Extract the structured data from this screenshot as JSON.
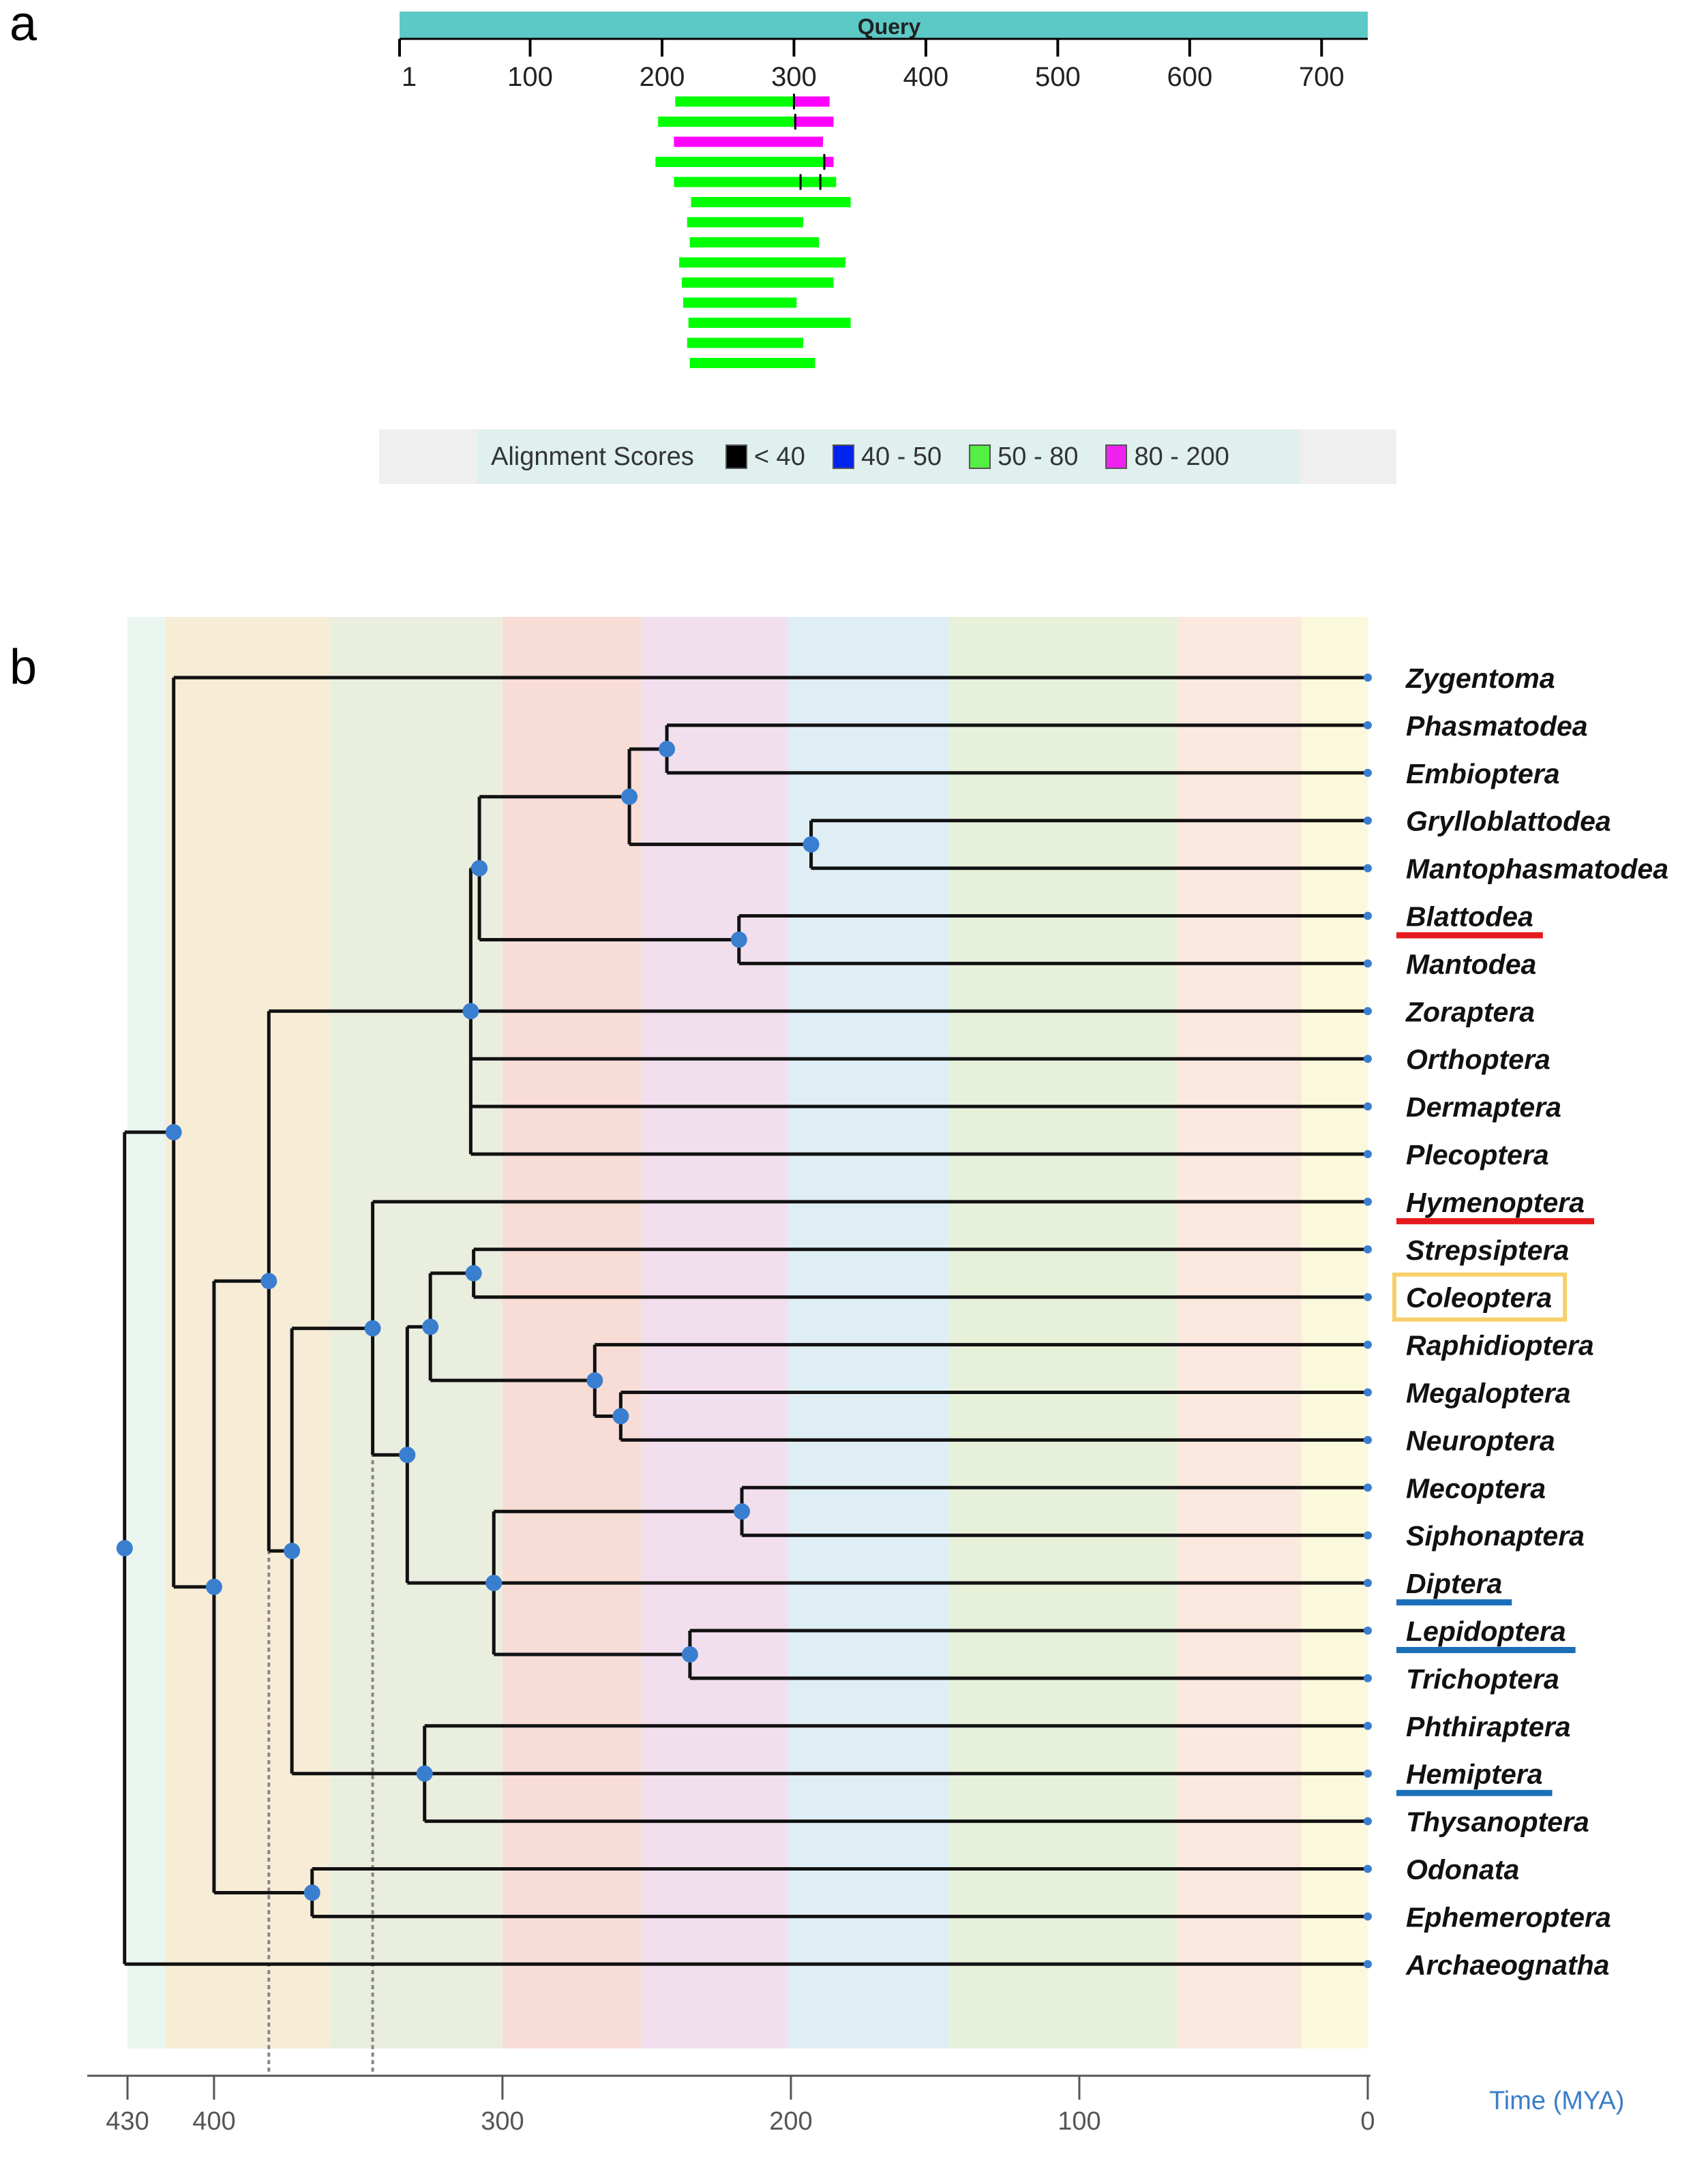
{
  "panel_a": {
    "letter": "a",
    "query_label": "Query",
    "query_length": 735,
    "query_color": "#5bc9c6",
    "axis_ticks": [
      "1",
      "100",
      "200",
      "300",
      "400",
      "500",
      "600",
      "700"
    ],
    "hits": [
      {
        "start": 210,
        "end": 327,
        "segments": [
          {
            "from": 210,
            "to": 300,
            "color": "#00ff00"
          },
          {
            "from": 300,
            "to": 327,
            "color": "#ff00ff"
          }
        ],
        "marks": [
          300
        ]
      },
      {
        "start": 197,
        "end": 330,
        "segments": [
          {
            "from": 197,
            "to": 300,
            "color": "#00ff00"
          },
          {
            "from": 300,
            "to": 330,
            "color": "#ff00ff"
          }
        ],
        "marks": [
          301
        ]
      },
      {
        "start": 209,
        "end": 322,
        "segments": [
          {
            "from": 209,
            "to": 322,
            "color": "#ff00ff"
          }
        ],
        "marks": []
      },
      {
        "start": 195,
        "end": 330,
        "segments": [
          {
            "from": 195,
            "to": 323,
            "color": "#00ff00"
          },
          {
            "from": 323,
            "to": 330,
            "color": "#ff00ff"
          }
        ],
        "marks": [
          323
        ]
      },
      {
        "start": 209,
        "end": 332,
        "segments": [
          {
            "from": 209,
            "to": 332,
            "color": "#00ff00"
          }
        ],
        "marks": [
          305,
          320
        ]
      },
      {
        "start": 222,
        "end": 343,
        "segments": [
          {
            "from": 222,
            "to": 343,
            "color": "#00ff00"
          }
        ],
        "marks": []
      },
      {
        "start": 219,
        "end": 307,
        "segments": [
          {
            "from": 219,
            "to": 307,
            "color": "#00ff00"
          }
        ],
        "marks": []
      },
      {
        "start": 221,
        "end": 319,
        "segments": [
          {
            "from": 221,
            "to": 319,
            "color": "#00ff00"
          }
        ],
        "marks": []
      },
      {
        "start": 213,
        "end": 339,
        "segments": [
          {
            "from": 213,
            "to": 339,
            "color": "#00ff00"
          }
        ],
        "marks": []
      },
      {
        "start": 215,
        "end": 330,
        "segments": [
          {
            "from": 215,
            "to": 330,
            "color": "#00ff00"
          }
        ],
        "marks": []
      },
      {
        "start": 216,
        "end": 302,
        "segments": [
          {
            "from": 216,
            "to": 302,
            "color": "#00ff00"
          }
        ],
        "marks": []
      },
      {
        "start": 220,
        "end": 343,
        "segments": [
          {
            "from": 220,
            "to": 343,
            "color": "#00ff00"
          }
        ],
        "marks": []
      },
      {
        "start": 219,
        "end": 307,
        "segments": [
          {
            "from": 219,
            "to": 307,
            "color": "#00ff00"
          }
        ],
        "marks": []
      },
      {
        "start": 221,
        "end": 316,
        "segments": [
          {
            "from": 221,
            "to": 316,
            "color": "#00ff00"
          }
        ],
        "marks": []
      }
    ],
    "legend": {
      "title": "Alignment Scores",
      "items": [
        {
          "label": "< 40",
          "color": "#000000"
        },
        {
          "label": "40 - 50",
          "color": "#0022ee"
        },
        {
          "label": "50 - 80",
          "color": "#55ee44"
        },
        {
          "label": "80 - 200",
          "color": "#ee22ee"
        }
      ]
    }
  },
  "panel_b": {
    "letter": "b",
    "axis_label": "Time (MYA)",
    "axis_ticks": [
      430,
      400,
      300,
      200,
      100,
      0
    ],
    "axis_label_color": "#3a7ec8",
    "time_max": 430,
    "period_bands": [
      {
        "from": 430,
        "to": 417,
        "color": "#e8f4ee"
      },
      {
        "from": 417,
        "to": 360,
        "color": "#f6ead2"
      },
      {
        "from": 360,
        "to": 300,
        "color": "#e8ecdc"
      },
      {
        "from": 300,
        "to": 252,
        "color": "#f7d8d2"
      },
      {
        "from": 252,
        "to": 201,
        "color": "#efdcec"
      },
      {
        "from": 201,
        "to": 145,
        "color": "#dcecf4"
      },
      {
        "from": 145,
        "to": 66,
        "color": "#e4f0d6"
      },
      {
        "from": 66,
        "to": 23,
        "color": "#fbe6dc"
      },
      {
        "from": 23,
        "to": 0,
        "color": "#fbf8d8"
      }
    ],
    "taxa": [
      {
        "name": "Zygentoma",
        "highlight": "none"
      },
      {
        "name": "Phasmatodea",
        "highlight": "none"
      },
      {
        "name": "Embioptera",
        "highlight": "none"
      },
      {
        "name": "Grylloblattodea",
        "highlight": "none"
      },
      {
        "name": "Mantophasmatodea",
        "highlight": "none"
      },
      {
        "name": "Blattodea",
        "highlight": "red"
      },
      {
        "name": "Mantodea",
        "highlight": "none"
      },
      {
        "name": "Zoraptera",
        "highlight": "none"
      },
      {
        "name": "Orthoptera",
        "highlight": "none"
      },
      {
        "name": "Dermaptera",
        "highlight": "none"
      },
      {
        "name": "Plecoptera",
        "highlight": "none"
      },
      {
        "name": "Hymenoptera",
        "highlight": "red"
      },
      {
        "name": "Strepsiptera",
        "highlight": "none"
      },
      {
        "name": "Coleoptera",
        "highlight": "box"
      },
      {
        "name": "Raphidioptera",
        "highlight": "none"
      },
      {
        "name": "Megaloptera",
        "highlight": "none"
      },
      {
        "name": "Neuroptera",
        "highlight": "none"
      },
      {
        "name": "Mecoptera",
        "highlight": "none"
      },
      {
        "name": "Siphonaptera",
        "highlight": "none"
      },
      {
        "name": "Diptera",
        "highlight": "blue"
      },
      {
        "name": "Lepidoptera",
        "highlight": "blue"
      },
      {
        "name": "Trichoptera",
        "highlight": "none"
      },
      {
        "name": "Phthiraptera",
        "highlight": "none"
      },
      {
        "name": "Hemiptera",
        "highlight": "blue"
      },
      {
        "name": "Thysanoptera",
        "highlight": "none"
      },
      {
        "name": "Odonata",
        "highlight": "none"
      },
      {
        "name": "Ephemeroptera",
        "highlight": "none"
      },
      {
        "name": "Archaeognatha",
        "highlight": "none"
      }
    ],
    "highlight_colors": {
      "red": "#e41a1c",
      "blue": "#1a6fb8",
      "box": "#f7cf6a"
    },
    "node_color": "#3a7ed0",
    "tree": {
      "age": 431,
      "children": [
        {
          "age": 414,
          "children": [
            {
              "taxon": 0
            },
            {
              "age": 400,
              "children": [
                {
                  "age": 381,
                  "children": [
                    {
                      "age": 311,
                      "children": [
                        {
                          "age": 308,
                          "children": [
                            {
                              "age": 256,
                              "children": [
                                {
                                  "age": 243,
                                  "children": [
                                    {
                                      "taxon": 1
                                    },
                                    {
                                      "taxon": 2
                                    }
                                  ]
                                },
                                {
                                  "age": 193,
                                  "children": [
                                    {
                                      "taxon": 3
                                    },
                                    {
                                      "taxon": 4
                                    }
                                  ]
                                }
                              ]
                            },
                            {
                              "age": 218,
                              "children": [
                                {
                                  "taxon": 5
                                },
                                {
                                  "taxon": 6
                                }
                              ]
                            }
                          ]
                        },
                        {
                          "taxon": 7
                        },
                        {
                          "taxon": 8
                        },
                        {
                          "taxon": 9
                        },
                        {
                          "taxon": 10
                        }
                      ]
                    },
                    {
                      "age": 373,
                      "children": [
                        {
                          "age": 345,
                          "children": [
                            {
                              "taxon": 11
                            },
                            {
                              "age": 333,
                              "children": [
                                {
                                  "age": 325,
                                  "children": [
                                    {
                                      "age": 310,
                                      "children": [
                                        {
                                          "taxon": 12
                                        },
                                        {
                                          "taxon": 13
                                        }
                                      ]
                                    },
                                    {
                                      "age": 268,
                                      "children": [
                                        {
                                          "taxon": 14
                                        },
                                        {
                                          "age": 259,
                                          "children": [
                                            {
                                              "taxon": 15
                                            },
                                            {
                                              "taxon": 16
                                            }
                                          ]
                                        }
                                      ]
                                    }
                                  ]
                                },
                                {
                                  "age": 303,
                                  "children": [
                                    {
                                      "age": 217,
                                      "children": [
                                        {
                                          "taxon": 17
                                        },
                                        {
                                          "taxon": 18
                                        }
                                      ]
                                    },
                                    {
                                      "taxon": 19
                                    },
                                    {
                                      "age": 235,
                                      "children": [
                                        {
                                          "taxon": 20
                                        },
                                        {
                                          "taxon": 21
                                        }
                                      ]
                                    }
                                  ]
                                }
                              ]
                            }
                          ]
                        },
                        {
                          "age": 327,
                          "children": [
                            {
                              "taxon": 22
                            },
                            {
                              "taxon": 23
                            },
                            {
                              "taxon": 24
                            }
                          ]
                        }
                      ]
                    }
                  ]
                },
                {
                  "age": 366,
                  "children": [
                    {
                      "taxon": 25
                    },
                    {
                      "taxon": 26
                    }
                  ]
                }
              ]
            }
          ]
        },
        {
          "taxon": 27
        }
      ]
    },
    "dotted_time_lines": [
      381,
      345
    ]
  }
}
